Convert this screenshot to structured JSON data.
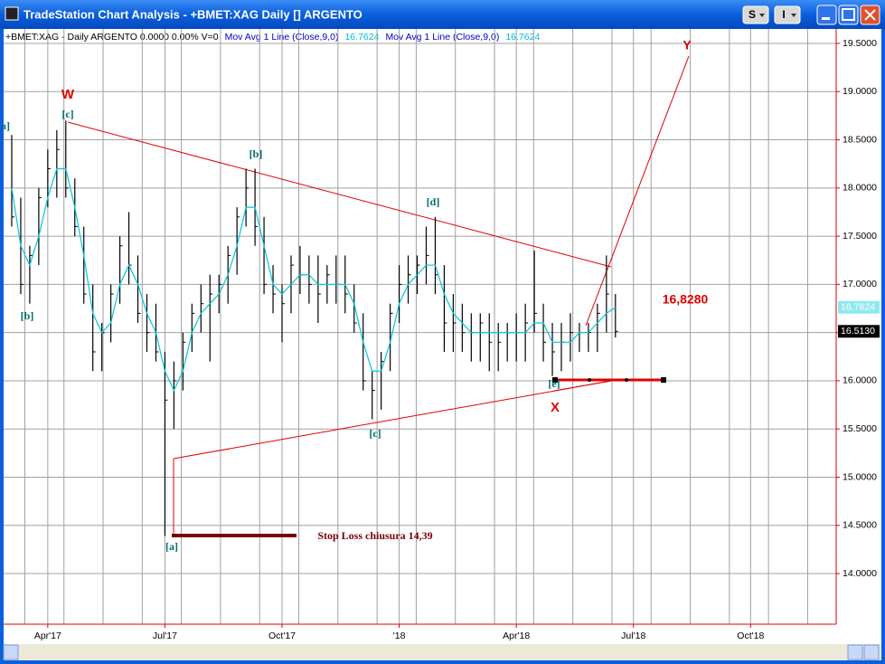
{
  "window": {
    "title": "TradeStation Chart Analysis - +BMET:XAG Daily [] ARGENTO",
    "buttons": [
      "S",
      "I"
    ]
  },
  "status_line": [
    {
      "text": "+BMET:XAG - Daily  ARGENTO  0.0000  0.00%  V=0",
      "color": "#000000"
    },
    {
      "text": "Mov Avg 1 Line (Close,9,0)",
      "color": "#0000cc"
    },
    {
      "text": "16.7624",
      "color": "#00bcd4"
    },
    {
      "text": "Mov Avg 1 Line (Close,9,0)",
      "color": "#0000cc"
    },
    {
      "text": "16.7624",
      "color": "#00bcd4"
    }
  ],
  "chart_data": {
    "type": "ohlc",
    "categories": [
      null,
      null,
      null,
      null,
      "Apr'17",
      null,
      null,
      null,
      null,
      null,
      null,
      null,
      null,
      null,
      null,
      null,
      null,
      "Jul'17",
      null,
      null,
      null,
      null,
      null,
      null,
      null,
      null,
      null,
      null,
      null,
      null,
      "Oct'17",
      null,
      null,
      null,
      null,
      null,
      null,
      null,
      null,
      null,
      null,
      null,
      null,
      "'18",
      null,
      null,
      null,
      null,
      null,
      null,
      null,
      null,
      null,
      null,
      null,
      null,
      "Apr'18",
      null,
      null,
      null,
      null,
      null,
      null,
      null,
      null,
      null,
      null,
      null,
      null,
      "Jul'18",
      null,
      null,
      null,
      null,
      null,
      null,
      null,
      null,
      null,
      null,
      null,
      null,
      "Oct'18",
      null,
      null,
      null,
      null,
      null,
      null,
      null,
      null,
      null
    ],
    "series": [
      {
        "name": "XAG",
        "color": "#000000",
        "high": [
          18.55,
          17.9,
          17.4,
          18.0,
          18.4,
          18.6,
          18.7,
          18.1,
          17.6,
          17.0,
          16.6,
          17.0,
          17.5,
          17.75,
          17.3,
          16.9,
          16.8,
          16.3,
          16.2,
          16.5,
          16.8,
          17.0,
          17.1,
          17.1,
          17.4,
          17.8,
          18.2,
          18.2,
          17.7,
          17.2,
          17.0,
          17.3,
          17.4,
          17.3,
          17.3,
          17.2,
          17.3,
          17.3,
          17.0,
          16.7,
          16.1,
          16.3,
          16.8,
          17.2,
          17.3,
          17.3,
          17.6,
          17.7,
          17.2,
          16.9,
          16.8,
          16.7,
          16.7,
          16.7,
          16.6,
          16.6,
          16.7,
          16.8,
          17.35,
          16.8,
          16.6,
          16.6,
          16.7,
          16.6,
          16.6,
          16.8,
          17.3,
          16.9,
          null,
          null,
          null,
          null,
          null,
          null,
          null,
          null,
          null,
          null,
          null,
          null,
          null,
          null,
          null,
          null,
          null,
          null,
          null,
          null,
          null,
          null,
          null,
          null
        ],
        "low": [
          17.6,
          16.9,
          16.8,
          17.2,
          17.8,
          17.9,
          17.9,
          17.5,
          16.8,
          16.1,
          16.1,
          16.4,
          16.8,
          17.0,
          16.6,
          16.3,
          16.2,
          14.39,
          15.5,
          15.9,
          16.3,
          16.5,
          16.2,
          16.7,
          16.8,
          17.1,
          17.6,
          17.4,
          16.9,
          16.7,
          16.4,
          16.7,
          16.9,
          16.8,
          16.6,
          16.8,
          16.8,
          16.7,
          16.5,
          15.9,
          15.6,
          15.7,
          16.1,
          16.6,
          16.8,
          16.9,
          17.0,
          16.9,
          16.3,
          16.3,
          16.3,
          16.2,
          16.2,
          16.1,
          16.1,
          16.2,
          16.2,
          16.2,
          16.5,
          16.2,
          16.05,
          16.1,
          16.2,
          16.3,
          16.3,
          16.3,
          16.5,
          16.45,
          null,
          null,
          null,
          null,
          null,
          null,
          null,
          null,
          null,
          null,
          null,
          null,
          null,
          null,
          null,
          null,
          null,
          null,
          null,
          null,
          null,
          null,
          null,
          null
        ],
        "close": [
          17.7,
          17.0,
          17.3,
          17.9,
          18.2,
          18.4,
          18.0,
          17.6,
          16.9,
          16.3,
          16.5,
          16.9,
          17.4,
          17.2,
          16.7,
          16.5,
          16.3,
          15.8,
          16.0,
          16.4,
          16.7,
          16.8,
          16.9,
          17.0,
          17.3,
          17.7,
          18.0,
          17.6,
          17.0,
          16.9,
          16.8,
          17.2,
          17.1,
          17.0,
          16.9,
          17.1,
          17.0,
          16.9,
          16.6,
          16.0,
          15.9,
          16.2,
          16.7,
          17.0,
          17.1,
          17.2,
          17.3,
          17.1,
          16.6,
          16.6,
          16.5,
          16.5,
          16.6,
          16.4,
          16.4,
          16.5,
          16.5,
          16.6,
          16.7,
          16.4,
          16.3,
          16.4,
          16.5,
          16.5,
          16.5,
          16.7,
          16.9,
          16.513,
          null,
          null,
          null,
          null,
          null,
          null,
          null,
          null,
          null,
          null,
          null,
          null,
          null,
          null,
          null,
          null,
          null,
          null,
          null,
          null,
          null,
          null,
          null,
          null
        ]
      },
      {
        "name": "Mov Avg 1 Line",
        "color": "#00c8d8",
        "values": [
          18.0,
          17.4,
          17.2,
          17.5,
          17.9,
          18.2,
          18.2,
          17.8,
          17.3,
          16.7,
          16.5,
          16.6,
          17.0,
          17.2,
          17.0,
          16.7,
          16.5,
          16.1,
          15.9,
          16.1,
          16.5,
          16.7,
          16.8,
          16.9,
          17.1,
          17.4,
          17.8,
          17.8,
          17.4,
          17.0,
          16.9,
          17.0,
          17.1,
          17.1,
          17.0,
          17.0,
          17.0,
          17.0,
          16.8,
          16.4,
          16.1,
          16.1,
          16.4,
          16.8,
          17.0,
          17.1,
          17.2,
          17.2,
          16.9,
          16.7,
          16.6,
          16.5,
          16.5,
          16.5,
          16.5,
          16.5,
          16.5,
          16.5,
          16.6,
          16.6,
          16.4,
          16.4,
          16.4,
          16.5,
          16.5,
          16.6,
          16.7,
          16.7624,
          null,
          null,
          null,
          null,
          null,
          null,
          null,
          null,
          null,
          null,
          null,
          null,
          null,
          null,
          null,
          null,
          null,
          null,
          null,
          null,
          null,
          null,
          null,
          null
        ]
      }
    ],
    "last_close": {
      "value": 16.513,
      "label": "16.5130"
    },
    "last_ma": 16.7624,
    "ylim": [
      13.475,
      19.65
    ],
    "yticks": [
      {
        "value": 14.0,
        "label": "14.0000"
      },
      {
        "value": 14.5,
        "label": "14.5000"
      },
      {
        "value": 15.0,
        "label": "15.0000"
      },
      {
        "value": 15.5,
        "label": "15.5000"
      },
      {
        "value": 16.0,
        "label": "16.0000"
      },
      {
        "value": 16.5,
        "label": "16.5000"
      },
      {
        "value": 17.0,
        "label": "17.0000"
      },
      {
        "value": 17.5,
        "label": "17.5000"
      },
      {
        "value": 18.0,
        "label": "18.0000"
      },
      {
        "value": 18.5,
        "label": "18.5000"
      },
      {
        "value": 19.0,
        "label": "19.0000"
      },
      {
        "value": 19.5,
        "label": "19.5000"
      }
    ],
    "grid": true,
    "annotations": [
      {
        "text": "W",
        "color": "#e00000"
      },
      {
        "text": "[c]",
        "color": "#007070"
      },
      {
        "text": "a]",
        "color": "#007070"
      },
      {
        "text": "[b]",
        "color": "#007070"
      },
      {
        "text": "[b]",
        "color": "#007070"
      },
      {
        "text": "[d]",
        "color": "#007070"
      },
      {
        "text": "[c]",
        "color": "#007070"
      },
      {
        "text": "[a]",
        "color": "#007070"
      },
      {
        "text": "[e]",
        "color": "#007070"
      },
      {
        "text": "X",
        "color": "#e00000"
      },
      {
        "text": "Y",
        "color": "#e00000"
      },
      {
        "text": "16,8280",
        "color": "#e00000"
      },
      {
        "text": "Stop Loss chiusura 14,39",
        "color": "#7a0000"
      }
    ]
  }
}
